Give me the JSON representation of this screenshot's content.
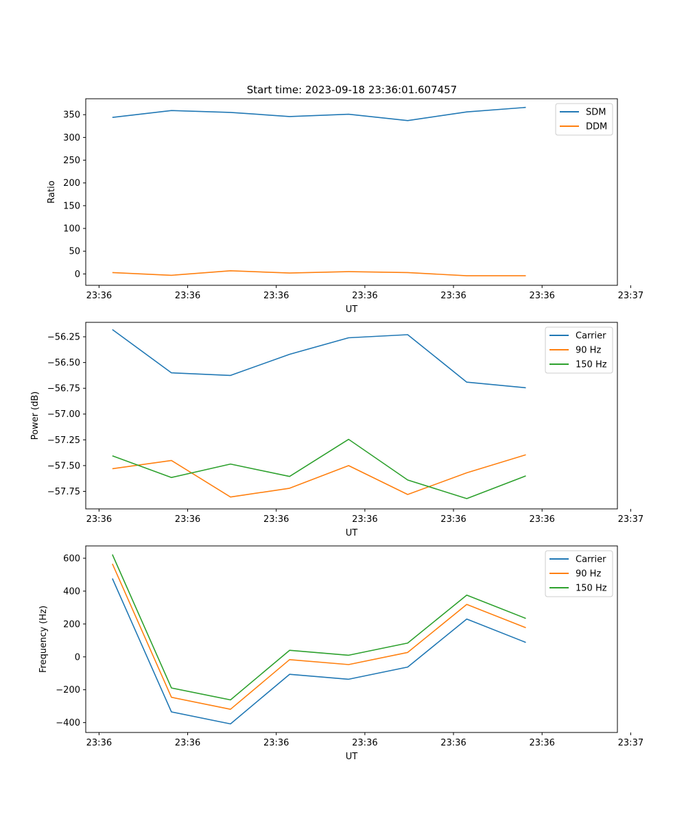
{
  "chart_data": [
    {
      "type": "line",
      "title": "Start time: 2023-09-18 23:36:01.607457",
      "xlabel": "UT",
      "ylabel": "Ratio",
      "x": [
        1,
        2,
        3,
        4,
        5,
        6,
        7,
        8
      ],
      "xlim": [
        0.55,
        9.55
      ],
      "xticks": [
        0.775,
        2.275,
        3.775,
        5.275,
        6.775,
        8.275,
        9.775
      ],
      "xtick_labels": [
        "23:36",
        "23:36",
        "23:36",
        "23:36",
        "23:36",
        "23:36",
        "23:37"
      ],
      "ylim": [
        -25,
        385
      ],
      "yticks": [
        0,
        50,
        100,
        150,
        200,
        250,
        300,
        350
      ],
      "ytick_labels": [
        "0",
        "50",
        "100",
        "150",
        "200",
        "250",
        "300",
        "350"
      ],
      "legend_position": "top-right",
      "series": [
        {
          "name": "SDM",
          "color": "#1f77b4",
          "values": [
            344,
            359,
            355,
            346,
            351,
            337,
            356,
            366
          ]
        },
        {
          "name": "DDM",
          "color": "#ff7f0e",
          "values": [
            3,
            -3,
            7,
            2,
            5,
            3,
            -4,
            -4
          ]
        }
      ]
    },
    {
      "type": "line",
      "title": "",
      "xlabel": "UT",
      "ylabel": "Power (dB)",
      "x": [
        1,
        2,
        3,
        4,
        5,
        6,
        7,
        8
      ],
      "xlim": [
        0.55,
        9.55
      ],
      "xticks": [
        0.775,
        2.275,
        3.775,
        5.275,
        6.775,
        8.275,
        9.775
      ],
      "xtick_labels": [
        "23:36",
        "23:36",
        "23:36",
        "23:36",
        "23:36",
        "23:36",
        "23:37"
      ],
      "ylim": [
        -57.92,
        -56.11
      ],
      "yticks": [
        -57.75,
        -57.5,
        -57.25,
        -57.0,
        -56.75,
        -56.5,
        -56.25
      ],
      "ytick_labels": [
        "−57.75",
        "−57.50",
        "−57.25",
        "−57.00",
        "−56.75",
        "−56.50",
        "−56.25"
      ],
      "legend_position": "top-right",
      "series": [
        {
          "name": "Carrier",
          "color": "#1f77b4",
          "values": [
            -56.18,
            -56.6,
            -56.625,
            -56.42,
            -56.26,
            -56.23,
            -56.69,
            -56.745
          ]
        },
        {
          "name": "90 Hz",
          "color": "#ff7f0e",
          "values": [
            -57.53,
            -57.45,
            -57.805,
            -57.72,
            -57.5,
            -57.78,
            -57.57,
            -57.395
          ]
        },
        {
          "name": "150 Hz",
          "color": "#2ca02c",
          "values": [
            -57.405,
            -57.615,
            -57.485,
            -57.605,
            -57.245,
            -57.64,
            -57.82,
            -57.6
          ]
        }
      ]
    },
    {
      "type": "line",
      "title": "",
      "xlabel": "UT",
      "ylabel": "Frequency (Hz)",
      "x": [
        1,
        2,
        3,
        4,
        5,
        6,
        7,
        8
      ],
      "xlim": [
        0.55,
        9.55
      ],
      "xticks": [
        0.775,
        2.275,
        3.775,
        5.275,
        6.775,
        8.275,
        9.775
      ],
      "xtick_labels": [
        "23:36",
        "23:36",
        "23:36",
        "23:36",
        "23:36",
        "23:36",
        "23:37"
      ],
      "ylim": [
        -460,
        675
      ],
      "yticks": [
        -400,
        -200,
        0,
        200,
        400,
        600
      ],
      "ytick_labels": [
        "−400",
        "−200",
        "0",
        "200",
        "400",
        "600"
      ],
      "legend_position": "top-right",
      "series": [
        {
          "name": "Carrier",
          "color": "#1f77b4",
          "values": [
            477,
            -335,
            -408,
            -106,
            -136,
            -62,
            230,
            88
          ]
        },
        {
          "name": "90 Hz",
          "color": "#ff7f0e",
          "values": [
            566,
            -246,
            -319,
            -17,
            -47,
            27,
            319,
            177
          ]
        },
        {
          "name": "150 Hz",
          "color": "#2ca02c",
          "values": [
            623,
            -189,
            -262,
            40,
            10,
            84,
            376,
            234
          ]
        }
      ]
    }
  ]
}
